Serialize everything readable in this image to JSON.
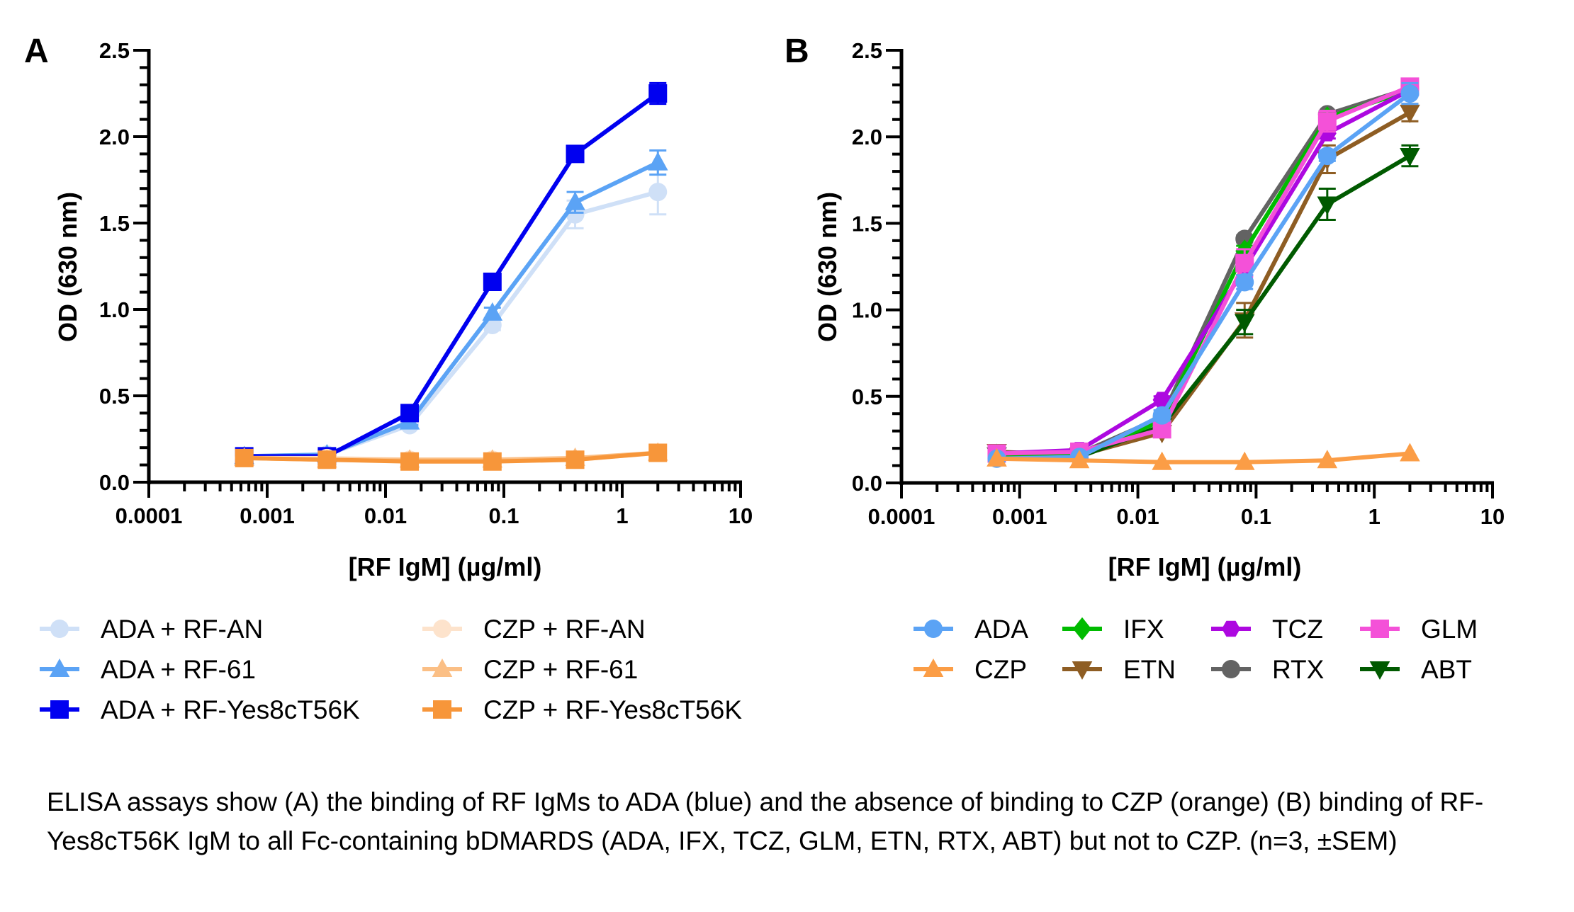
{
  "caption": "ELISA assays show (A) the binding of RF IgMs to ADA (blue) and the absence of binding to CZP (orange) (B) binding of RF-Yes8cT56K IgM to all Fc-containing bDMARDS (ADA, IFX, TCZ, GLM, ETN, RTX, ABT) but not to CZP. (n=3, ±SEM)",
  "chart_data": [
    {
      "panel": "A",
      "type": "line",
      "title": "",
      "xlabel": "[RF IgM] (µg/ml)",
      "ylabel": "OD (630 nm)",
      "xscale": "log",
      "xlim": [
        0.0001,
        10
      ],
      "ylim": [
        0,
        2.5
      ],
      "xticks": [
        "0.0001",
        "0.001",
        "0.01",
        "0.1",
        "1",
        "10"
      ],
      "yticks": [
        "0.0",
        "0.5",
        "1.0",
        "1.5",
        "2.0",
        "2.5"
      ],
      "grid": false,
      "legend_position": "bottom",
      "x": [
        0.00064,
        0.0032,
        0.016,
        0.08,
        0.4,
        2
      ],
      "series": [
        {
          "name": "ADA + RF-AN",
          "color": "#cfe0f7",
          "marker": "circle",
          "values": [
            0.15,
            0.16,
            0.33,
            0.91,
            1.55,
            1.68
          ],
          "err": [
            0.01,
            0.01,
            0.02,
            0.03,
            0.08,
            0.13
          ]
        },
        {
          "name": "ADA + RF-61",
          "color": "#5ba3f5",
          "marker": "triangle",
          "values": [
            0.15,
            0.16,
            0.35,
            0.98,
            1.62,
            1.85
          ],
          "err": [
            0.01,
            0.01,
            0.02,
            0.03,
            0.06,
            0.07
          ]
        },
        {
          "name": "ADA + RF-Yes8cT56K",
          "color": "#0000f0",
          "marker": "square",
          "values": [
            0.15,
            0.15,
            0.4,
            1.16,
            1.9,
            2.25
          ],
          "err": [
            0.01,
            0.01,
            0.02,
            0.02,
            0.02,
            0.06
          ]
        },
        {
          "name": "CZP + RF-AN",
          "color": "#fde3cc",
          "marker": "circle",
          "values": [
            0.14,
            0.14,
            0.13,
            0.13,
            0.13,
            0.17
          ],
          "err": [
            0.01,
            0.01,
            0.01,
            0.01,
            0.01,
            0.01
          ]
        },
        {
          "name": "CZP + RF-61",
          "color": "#fbbf85",
          "marker": "triangle",
          "values": [
            0.14,
            0.13,
            0.13,
            0.13,
            0.14,
            0.17
          ],
          "err": [
            0.01,
            0.01,
            0.01,
            0.01,
            0.01,
            0.01
          ]
        },
        {
          "name": "CZP + RF-Yes8cT56K",
          "color": "#f7963a",
          "marker": "square",
          "values": [
            0.14,
            0.13,
            0.12,
            0.12,
            0.13,
            0.17
          ],
          "err": [
            0.01,
            0.01,
            0.01,
            0.01,
            0.01,
            0.01
          ]
        }
      ]
    },
    {
      "panel": "B",
      "type": "line",
      "title": "",
      "xlabel": "[RF IgM] (µg/ml)",
      "ylabel": "OD (630 nm)",
      "xscale": "log",
      "xlim": [
        0.0001,
        10
      ],
      "ylim": [
        0,
        2.5
      ],
      "xticks": [
        "0.0001",
        "0.001",
        "0.01",
        "0.1",
        "1",
        "10"
      ],
      "yticks": [
        "0.0",
        "0.5",
        "1.0",
        "1.5",
        "2.0",
        "2.5"
      ],
      "grid": false,
      "legend_position": "bottom",
      "x": [
        0.00064,
        0.0032,
        0.016,
        0.08,
        0.4,
        2
      ],
      "series": [
        {
          "name": "ETN",
          "color": "#8e5d23",
          "marker": "triangle-down",
          "values": [
            0.18,
            0.16,
            0.29,
            0.94,
            1.87,
            2.14
          ],
          "err": [
            0.02,
            0.01,
            0.02,
            0.1,
            0.08,
            0.05
          ]
        },
        {
          "name": "ABT",
          "color": "#005a00",
          "marker": "triangle-down",
          "values": [
            0.16,
            0.15,
            0.33,
            0.93,
            1.61,
            1.89
          ],
          "err": [
            0.01,
            0.01,
            0.02,
            0.07,
            0.09,
            0.06
          ]
        },
        {
          "name": "RTX",
          "color": "#636363",
          "marker": "circle",
          "values": [
            0.17,
            0.17,
            0.38,
            1.41,
            2.13,
            2.28
          ],
          "err": [
            0.01,
            0.01,
            0.02,
            0.02,
            0.02,
            0.02
          ]
        },
        {
          "name": "IFX",
          "color": "#00bb00",
          "marker": "diamond",
          "values": [
            0.16,
            0.16,
            0.36,
            1.34,
            2.11,
            2.27
          ],
          "err": [
            0.01,
            0.01,
            0.02,
            0.03,
            0.02,
            0.02
          ]
        },
        {
          "name": "TCZ",
          "color": "#ad08e0",
          "marker": "hexagon",
          "values": [
            0.17,
            0.19,
            0.48,
            1.24,
            2.02,
            2.27
          ],
          "err": [
            0.01,
            0.01,
            0.02,
            0.04,
            0.03,
            0.02
          ]
        },
        {
          "name": "GLM",
          "color": "#f451d8",
          "marker": "square",
          "values": [
            0.17,
            0.18,
            0.31,
            1.27,
            2.09,
            2.29
          ],
          "err": [
            0.01,
            0.01,
            0.02,
            0.08,
            0.06,
            0.03
          ]
        },
        {
          "name": "ADA",
          "color": "#5ba3f5",
          "marker": "circle",
          "values": [
            0.14,
            0.15,
            0.39,
            1.16,
            1.89,
            2.25
          ],
          "err": [
            0.01,
            0.01,
            0.03,
            0.04,
            0.03,
            0.06
          ]
        },
        {
          "name": "CZP",
          "color": "#fb9d46",
          "marker": "triangle",
          "values": [
            0.14,
            0.13,
            0.12,
            0.12,
            0.13,
            0.17
          ],
          "err": [
            0.01,
            0.01,
            0.01,
            0.01,
            0.01,
            0.01
          ]
        }
      ],
      "legend_order": [
        "ADA",
        "IFX",
        "TCZ",
        "GLM",
        "CZP",
        "ETN",
        "RTX",
        "ABT"
      ]
    }
  ]
}
